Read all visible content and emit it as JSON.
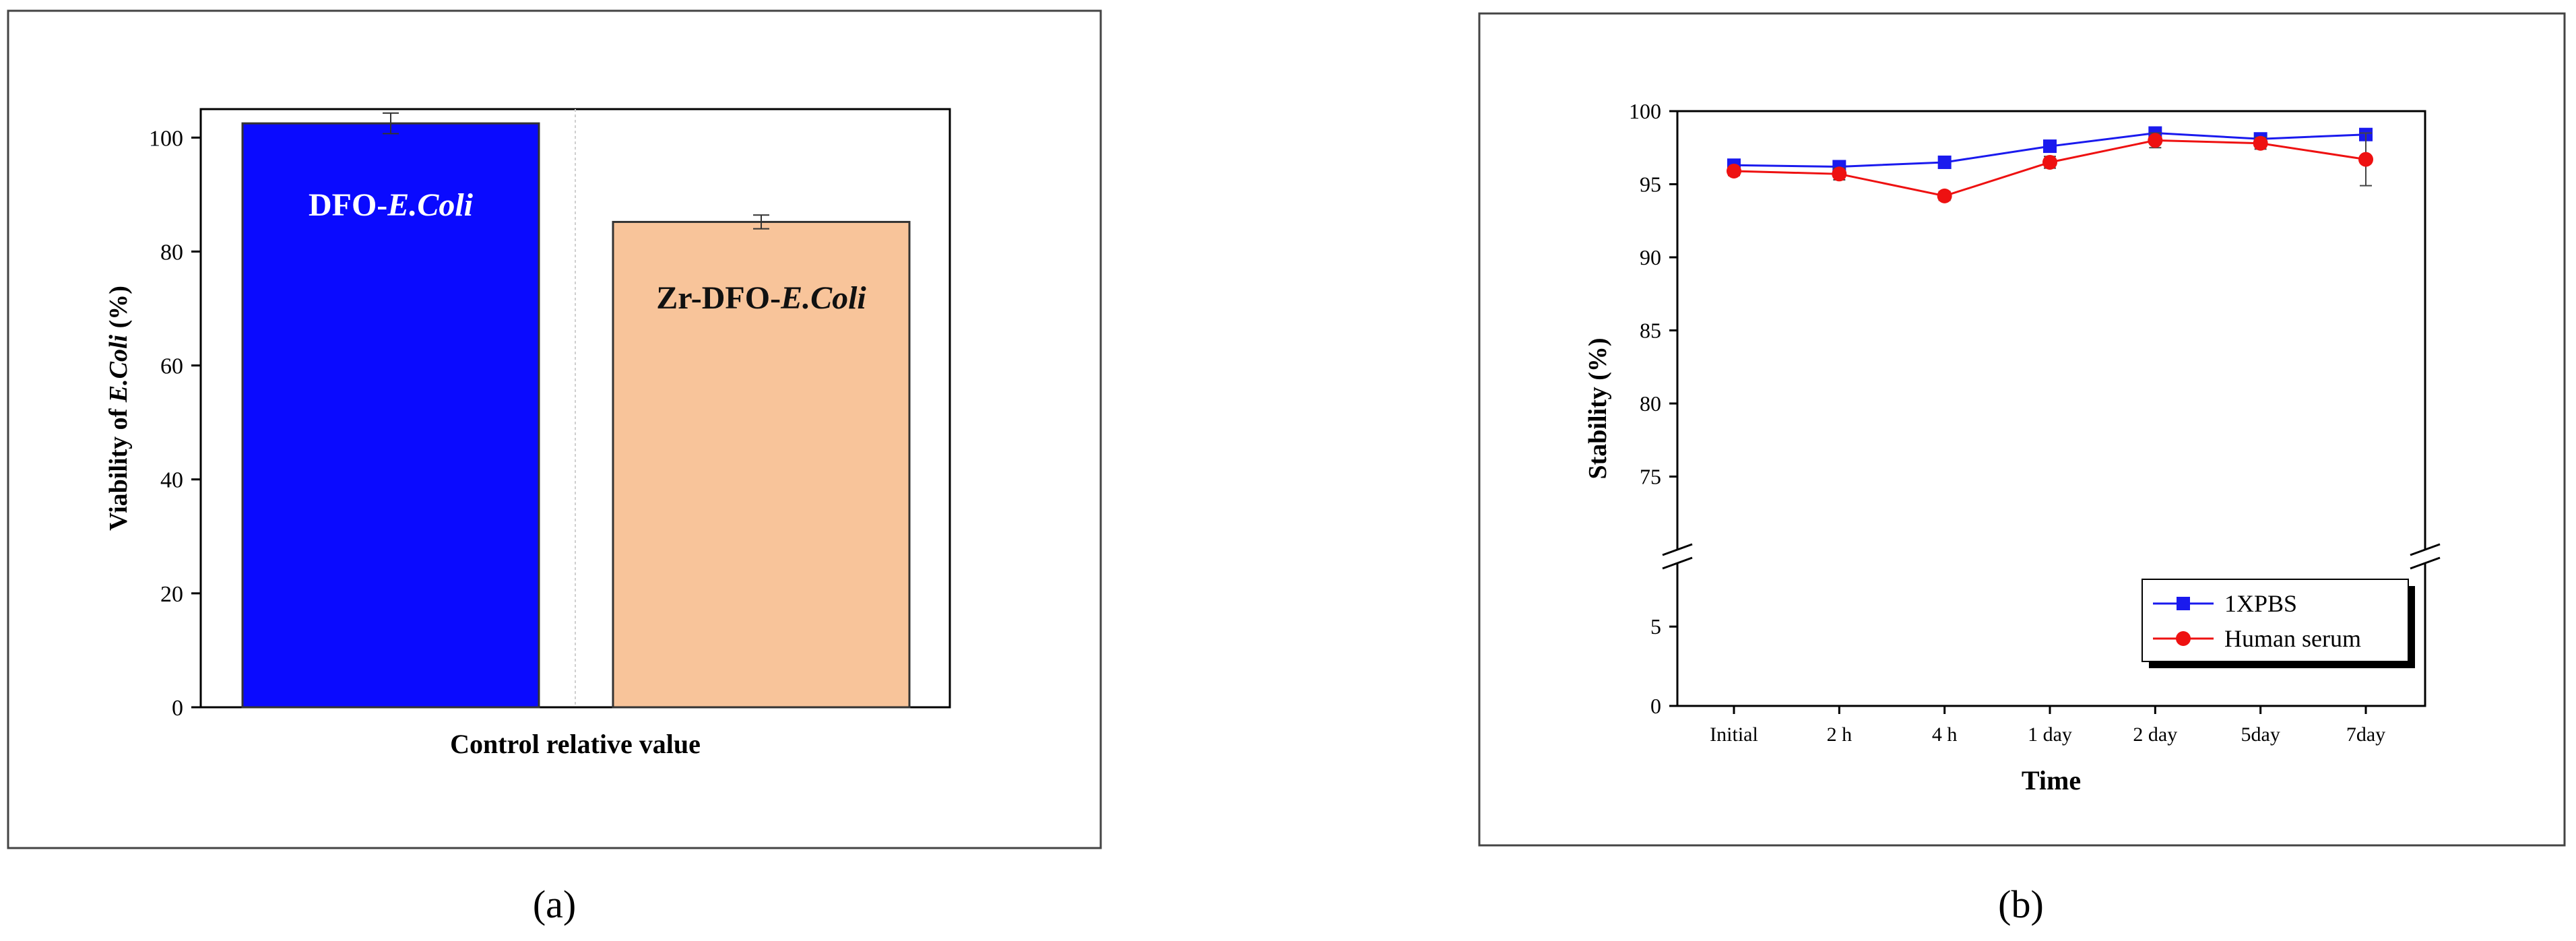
{
  "panels": {
    "a_label": "(a)",
    "b_label": "(b)"
  },
  "chart_data": [
    {
      "type": "bar",
      "title": "",
      "xlabel": "Control relative value",
      "ylabel_prefix": "Viability of ",
      "ylabel_italic": "E.Coli",
      "ylabel_suffix": " (%)",
      "ylim": [
        0,
        105
      ],
      "yticks": [
        0,
        20,
        40,
        60,
        80,
        100
      ],
      "grid": false,
      "categories": [
        "DFO-E.Coli",
        "Zr-DFO-E.Coli"
      ],
      "values": [
        102.5,
        85.2
      ],
      "errors": [
        1.8,
        1.2
      ],
      "colors": [
        "#0a0aff",
        "#f8c49a"
      ],
      "bar_labels": [
        {
          "prefix": "DFO-",
          "italic": "E.Coli"
        },
        {
          "prefix": "Zr-DFO-",
          "italic": "E.Coli"
        }
      ]
    },
    {
      "type": "line",
      "title": "",
      "xlabel": "Time",
      "ylabel": "Stability (%)",
      "categories": [
        "Initial",
        "2 h",
        "4 h",
        "1 day",
        "2 day",
        "5day",
        "7day"
      ],
      "y_axis_break": true,
      "ylim_lower": [
        0,
        9
      ],
      "yticks_lower": [
        0,
        5
      ],
      "ylim_upper": [
        70,
        100
      ],
      "yticks_upper": [
        75,
        80,
        85,
        90,
        95,
        100
      ],
      "grid": false,
      "legend_position": "bottom-right",
      "series": [
        {
          "name": "1XPBS",
          "color": "#1a1aee",
          "marker": "square",
          "values": [
            96.3,
            96.2,
            96.5,
            97.6,
            98.5,
            98.1,
            98.4
          ],
          "errors": [
            0.3,
            0.3,
            0.3,
            0.3,
            0.4,
            0.3,
            0.4
          ]
        },
        {
          "name": "Human serum",
          "color": "#ee1111",
          "marker": "circle",
          "values": [
            95.9,
            95.7,
            94.2,
            96.5,
            98.0,
            97.8,
            96.7
          ],
          "errors": [
            0.3,
            0.4,
            0.3,
            0.4,
            0.5,
            0.4,
            1.8
          ]
        }
      ]
    }
  ]
}
